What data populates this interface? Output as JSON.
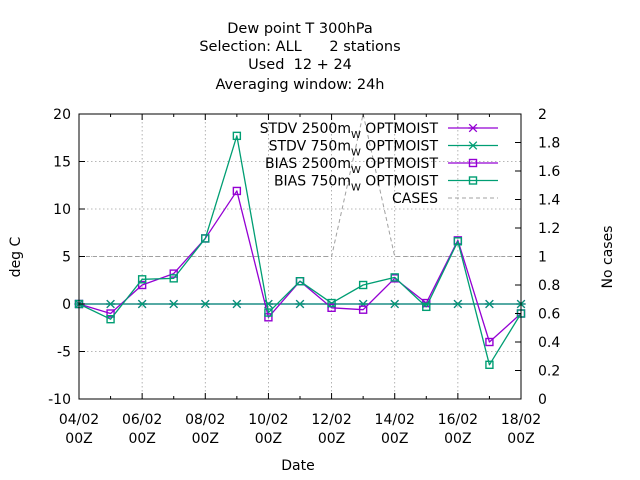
{
  "chart_data": {
    "type": "line",
    "title_lines": [
      "Dew point T 300hPa",
      "Selection: ALL      2 stations",
      "Used  12 + 24",
      "Averaging window: 24h"
    ],
    "xlabel": "Date",
    "ylabel": "deg C",
    "y2label": "No cases",
    "x_range": [
      0,
      14
    ],
    "ylim": [
      -10,
      20
    ],
    "y2lim": [
      0,
      2
    ],
    "grid": true,
    "legend_position": "top-right",
    "x_ticks": [
      {
        "x": 0,
        "line1": "04/02",
        "line2": "00Z"
      },
      {
        "x": 2,
        "line1": "06/02",
        "line2": "00Z"
      },
      {
        "x": 4,
        "line1": "08/02",
        "line2": "00Z"
      },
      {
        "x": 6,
        "line1": "10/02",
        "line2": "00Z"
      },
      {
        "x": 8,
        "line1": "12/02",
        "line2": "00Z"
      },
      {
        "x": 10,
        "line1": "14/02",
        "line2": "00Z"
      },
      {
        "x": 12,
        "line1": "16/02",
        "line2": "00Z"
      },
      {
        "x": 14,
        "line1": "18/02",
        "line2": "00Z"
      }
    ],
    "y_ticks": [
      {
        "v": -10,
        "label": "-10"
      },
      {
        "v": -5,
        "label": "-5"
      },
      {
        "v": 0,
        "label": "0"
      },
      {
        "v": 5,
        "label": "5"
      },
      {
        "v": 10,
        "label": "10"
      },
      {
        "v": 15,
        "label": "15"
      },
      {
        "v": 20,
        "label": "20"
      }
    ],
    "y2_ticks": [
      {
        "v": 0,
        "label": "0"
      },
      {
        "v": 0.2,
        "label": "0.2"
      },
      {
        "v": 0.4,
        "label": "0.4"
      },
      {
        "v": 0.6,
        "label": "0.6"
      },
      {
        "v": 0.8,
        "label": "0.8"
      },
      {
        "v": 1.0,
        "label": "1"
      },
      {
        "v": 1.2,
        "label": "1.2"
      },
      {
        "v": 1.4,
        "label": "1.4"
      },
      {
        "v": 1.6,
        "label": "1.6"
      },
      {
        "v": 1.8,
        "label": "1.8"
      },
      {
        "v": 2.0,
        "label": "2"
      }
    ],
    "x": [
      0,
      1,
      2,
      3,
      4,
      5,
      6,
      7,
      8,
      9,
      10,
      11,
      12,
      13,
      14
    ],
    "series": [
      {
        "name": "STDV 2500m",
        "subscript": "W",
        "suffix": " OPTMOIST",
        "color": "#9400d3",
        "marker": "star",
        "axis": "y",
        "values": [
          0,
          0,
          0,
          0,
          0,
          0,
          0,
          0,
          0,
          0,
          0,
          0,
          0,
          0,
          0
        ]
      },
      {
        "name": "STDV 750m",
        "subscript": "W",
        "suffix": " OPTMOIST",
        "color": "#009e73",
        "marker": "star",
        "axis": "y",
        "values": [
          0,
          0,
          0,
          0,
          0,
          0,
          0,
          0,
          0,
          0,
          0,
          0,
          0,
          0,
          0
        ]
      },
      {
        "name": "BIAS 2500m",
        "subscript": "W",
        "suffix": " OPTMOIST",
        "color": "#9400d3",
        "marker": "square",
        "axis": "y",
        "values": [
          0,
          -1.0,
          2.0,
          3.2,
          6.9,
          11.9,
          -1.4,
          2.4,
          -0.4,
          -0.6,
          2.7,
          0.1,
          6.7,
          -4.0,
          -1.0
        ]
      },
      {
        "name": "BIAS 750m",
        "subscript": "W",
        "suffix": " OPTMOIST",
        "color": "#009e73",
        "marker": "square",
        "axis": "y",
        "values": [
          0,
          -1.6,
          2.6,
          2.7,
          6.9,
          17.7,
          -0.9,
          2.4,
          0.1,
          2.0,
          2.8,
          -0.3,
          6.6,
          -6.4,
          -1.0
        ]
      },
      {
        "name": "CASES",
        "subscript": "",
        "suffix": "",
        "color": "#a0a0a0",
        "marker": "none",
        "dashed": true,
        "axis": "y2",
        "values": [
          1,
          1,
          1,
          1,
          1,
          1,
          1,
          1,
          1,
          2,
          1,
          1,
          1,
          1,
          1
        ]
      }
    ]
  }
}
